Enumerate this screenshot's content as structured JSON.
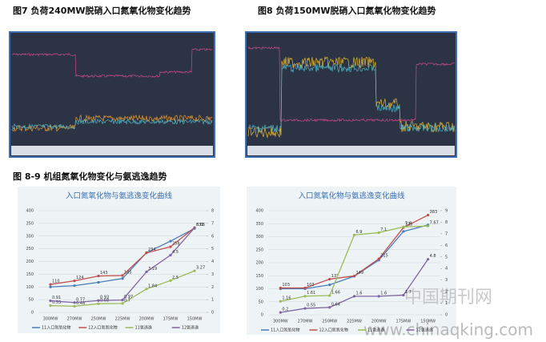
{
  "captions": [
    "图7  负荷240MW脱硝入口氮氧化物变化趋势",
    "图8  负荷150MW脱硝入口氮氧化物变化趋势",
    "图 8-9  机组氮氧化物变化与氨逃逸趋势"
  ],
  "watermark": [
    "中国期刊网",
    "www.chinaqking.com"
  ],
  "chart_data": [
    {
      "type": "line",
      "title": "入口氮氧化物与氨逃逸变化曲线",
      "categories": [
        "300MW",
        "270MW",
        "250MW",
        "225MW",
        "200MW",
        "175MW",
        "150MW"
      ],
      "ylim": [
        0,
        400
      ],
      "yticks": [
        0,
        50,
        100,
        150,
        200,
        250,
        300,
        350,
        400
      ],
      "y2lim": [
        0,
        8
      ],
      "y2ticks": [
        0,
        1,
        2,
        3,
        4,
        5,
        6,
        7,
        8
      ],
      "series": [
        {
          "name": "11入口氮氧化物",
          "color": "#4a7ebb",
          "values": [
            100,
            105,
            118,
            133,
            235,
            280,
            330
          ],
          "labels": false
        },
        {
          "name": "12入口氮氧化物",
          "color": "#c0504d",
          "values": [
            110,
            124,
            143,
            145,
            234,
            258,
            333
          ],
          "labels": true
        },
        {
          "name": "11氨逃逸",
          "color": "#9bbb59",
          "axis": "y2",
          "values": [
            0.53,
            0.48,
            0.68,
            0.7,
            1.84,
            2.5,
            3.27
          ],
          "labels": true
        },
        {
          "name": "12氨逃逸",
          "color": "#8064a2",
          "axis": "y2",
          "values": [
            0.91,
            0.77,
            0.93,
            0.97,
            3.19,
            4.5,
            6.65
          ],
          "labels": true
        }
      ]
    },
    {
      "type": "line",
      "title": "入口氮氧化物与氨逃逸变化曲线",
      "categories": [
        "300MW",
        "270MW",
        "250MW",
        "225MW",
        "200MW",
        "175MW",
        "150MW"
      ],
      "ylim": [
        0,
        400
      ],
      "yticks": [
        0,
        50,
        100,
        150,
        200,
        250,
        300,
        350,
        400
      ],
      "y2lim": [
        0,
        9
      ],
      "y2ticks": [
        0,
        1,
        2,
        3,
        4,
        5,
        6,
        7,
        8,
        9
      ],
      "series": [
        {
          "name": "11入口氮氧化物",
          "color": "#4a7ebb",
          "values": [
            100,
            100,
            115,
            148,
            210,
            320,
            345
          ],
          "labels": false
        },
        {
          "name": "12入口氮氧化物",
          "color": "#c0504d",
          "values": [
            103,
            103,
            137,
            149,
            215,
            335,
            383
          ],
          "labels": true
        },
        {
          "name": "11氨逃逸",
          "color": "#9bbb59",
          "axis": "y2",
          "values": [
            1.16,
            1.61,
            1.66,
            6.9,
            7.1,
            7.6,
            7.67
          ],
          "labels": true
        },
        {
          "name": "12氨逃逸",
          "color": "#8064a2",
          "axis": "y2",
          "values": [
            0.2,
            0.55,
            0.64,
            1.6,
            1.6,
            1.7,
            4.8
          ],
          "labels": true
        }
      ]
    }
  ]
}
